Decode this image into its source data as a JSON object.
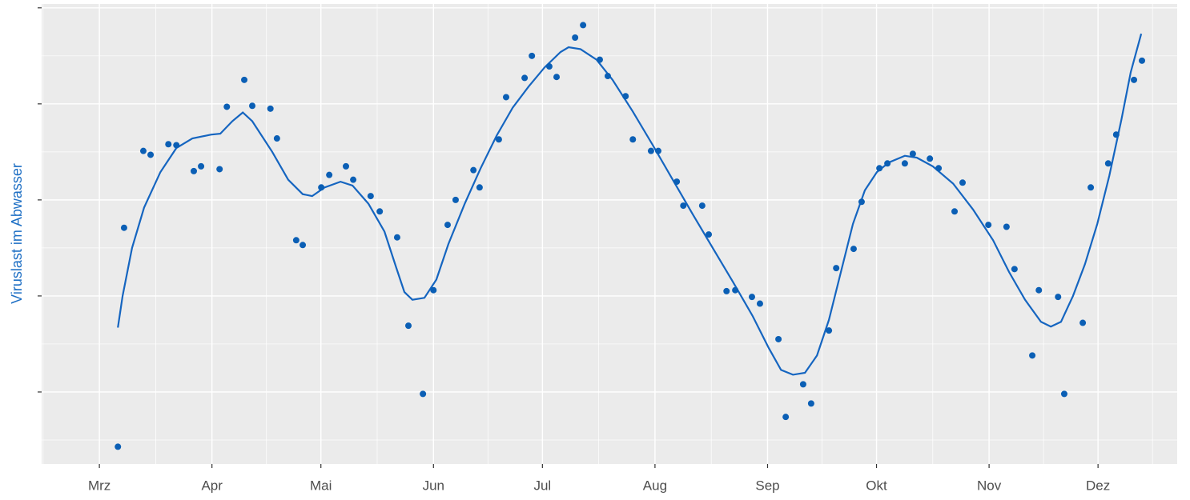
{
  "chart_data": {
    "type": "scatter",
    "y_label": "Viruslast im Abwasser",
    "color": "#0b5fb5",
    "trend_color": "#1565c0",
    "grid": true,
    "xlim": [
      -15.9,
      296.8
    ],
    "xticks": [
      {
        "value": 0,
        "label": "Mrz"
      },
      {
        "value": 31,
        "label": "Apr"
      },
      {
        "value": 61,
        "label": "Mai"
      },
      {
        "value": 92,
        "label": "Jun"
      },
      {
        "value": 122,
        "label": "Jul"
      },
      {
        "value": 153,
        "label": "Aug"
      },
      {
        "value": 184,
        "label": "Sep"
      },
      {
        "value": 214,
        "label": "Okt"
      },
      {
        "value": 245,
        "label": "Nov"
      },
      {
        "value": 275,
        "label": "Dez"
      }
    ],
    "ylim": [
      0.25,
      5.04
    ],
    "yticks": [
      1,
      2,
      3,
      4,
      5
    ],
    "x": [
      5.1,
      6.8,
      12.1,
      14.1,
      19.0,
      21.2,
      26.0,
      28.0,
      33.1,
      35.1,
      39.9,
      42.1,
      47.1,
      48.9,
      54.2,
      56.0,
      61.1,
      63.3,
      67.9,
      69.9,
      74.7,
      77.2,
      82.0,
      85.1,
      89.1,
      92.0,
      95.9,
      98.1,
      103.0,
      104.7,
      110.0,
      112.0,
      117.1,
      119.1,
      123.9,
      125.9,
      131.0,
      133.2,
      137.8,
      140.0,
      144.9,
      146.9,
      151.9,
      153.9,
      159.0,
      160.8,
      166.0,
      167.8,
      172.7,
      175.1,
      179.7,
      181.9,
      187.0,
      189.0,
      193.8,
      196.0,
      200.9,
      202.9,
      207.7,
      209.9,
      214.8,
      217.0,
      221.8,
      224.0,
      228.7,
      231.1,
      235.5,
      237.7,
      244.8,
      249.8,
      252.0,
      256.9,
      258.7,
      264.0,
      265.7,
      270.8,
      273.0,
      277.8,
      280.0,
      284.9,
      287.1
    ],
    "values": [
      0.43,
      2.71,
      3.51,
      3.47,
      3.58,
      3.57,
      3.3,
      3.35,
      3.32,
      3.97,
      4.25,
      3.98,
      3.95,
      3.64,
      2.58,
      2.53,
      3.13,
      3.26,
      3.35,
      3.21,
      3.04,
      2.88,
      2.61,
      1.69,
      0.98,
      2.06,
      2.74,
      3.0,
      3.31,
      3.13,
      3.63,
      4.07,
      4.27,
      4.5,
      4.39,
      4.28,
      4.69,
      4.82,
      4.46,
      4.29,
      4.08,
      3.63,
      3.51,
      3.51,
      3.19,
      2.94,
      2.94,
      2.64,
      2.05,
      2.06,
      1.99,
      1.92,
      1.55,
      0.74,
      1.08,
      0.88,
      1.64,
      2.29,
      2.49,
      2.98,
      3.33,
      3.38,
      3.38,
      3.48,
      3.43,
      3.33,
      2.88,
      3.18,
      2.74,
      2.72,
      2.28,
      1.38,
      2.06,
      1.99,
      0.98,
      1.72,
      3.13,
      3.38,
      3.68,
      4.25,
      4.45
    ],
    "trend_x": [
      5.1,
      6.4,
      9.0,
      12.3,
      16.8,
      21.2,
      25.6,
      30.7,
      33.3,
      36.6,
      39.5,
      42.1,
      47.6,
      52.0,
      56.0,
      58.6,
      62.0,
      66.4,
      69.7,
      74.1,
      78.5,
      81.8,
      84.0,
      86.2,
      89.5,
      92.8,
      96.1,
      100.6,
      105.0,
      109.4,
      113.8,
      118.2,
      122.6,
      127.0,
      129.2,
      132.5,
      136.9,
      141.3,
      146.9,
      152.4,
      157.9,
      163.4,
      168.9,
      174.4,
      179.9,
      184.3,
      187.7,
      191.0,
      194.3,
      197.6,
      200.9,
      204.2,
      207.5,
      210.8,
      214.1,
      217.4,
      221.8,
      225.1,
      229.5,
      235.1,
      240.6,
      246.1,
      250.5,
      254.9,
      259.3,
      262.0,
      264.8,
      268.1,
      271.4,
      274.8,
      278.1,
      281.4,
      284.0,
      286.9
    ],
    "trend_values": [
      1.67,
      2.0,
      2.5,
      2.92,
      3.29,
      3.54,
      3.64,
      3.68,
      3.69,
      3.82,
      3.91,
      3.82,
      3.5,
      3.21,
      3.06,
      3.04,
      3.13,
      3.19,
      3.15,
      2.96,
      2.67,
      2.29,
      2.04,
      1.96,
      1.98,
      2.17,
      2.54,
      2.96,
      3.33,
      3.67,
      3.96,
      4.18,
      4.38,
      4.54,
      4.59,
      4.57,
      4.46,
      4.25,
      3.92,
      3.57,
      3.21,
      2.85,
      2.5,
      2.15,
      1.79,
      1.46,
      1.23,
      1.18,
      1.2,
      1.38,
      1.75,
      2.25,
      2.75,
      3.1,
      3.29,
      3.39,
      3.46,
      3.44,
      3.35,
      3.17,
      2.9,
      2.58,
      2.25,
      1.96,
      1.73,
      1.68,
      1.73,
      2.0,
      2.33,
      2.75,
      3.25,
      3.83,
      4.33,
      4.73
    ]
  }
}
